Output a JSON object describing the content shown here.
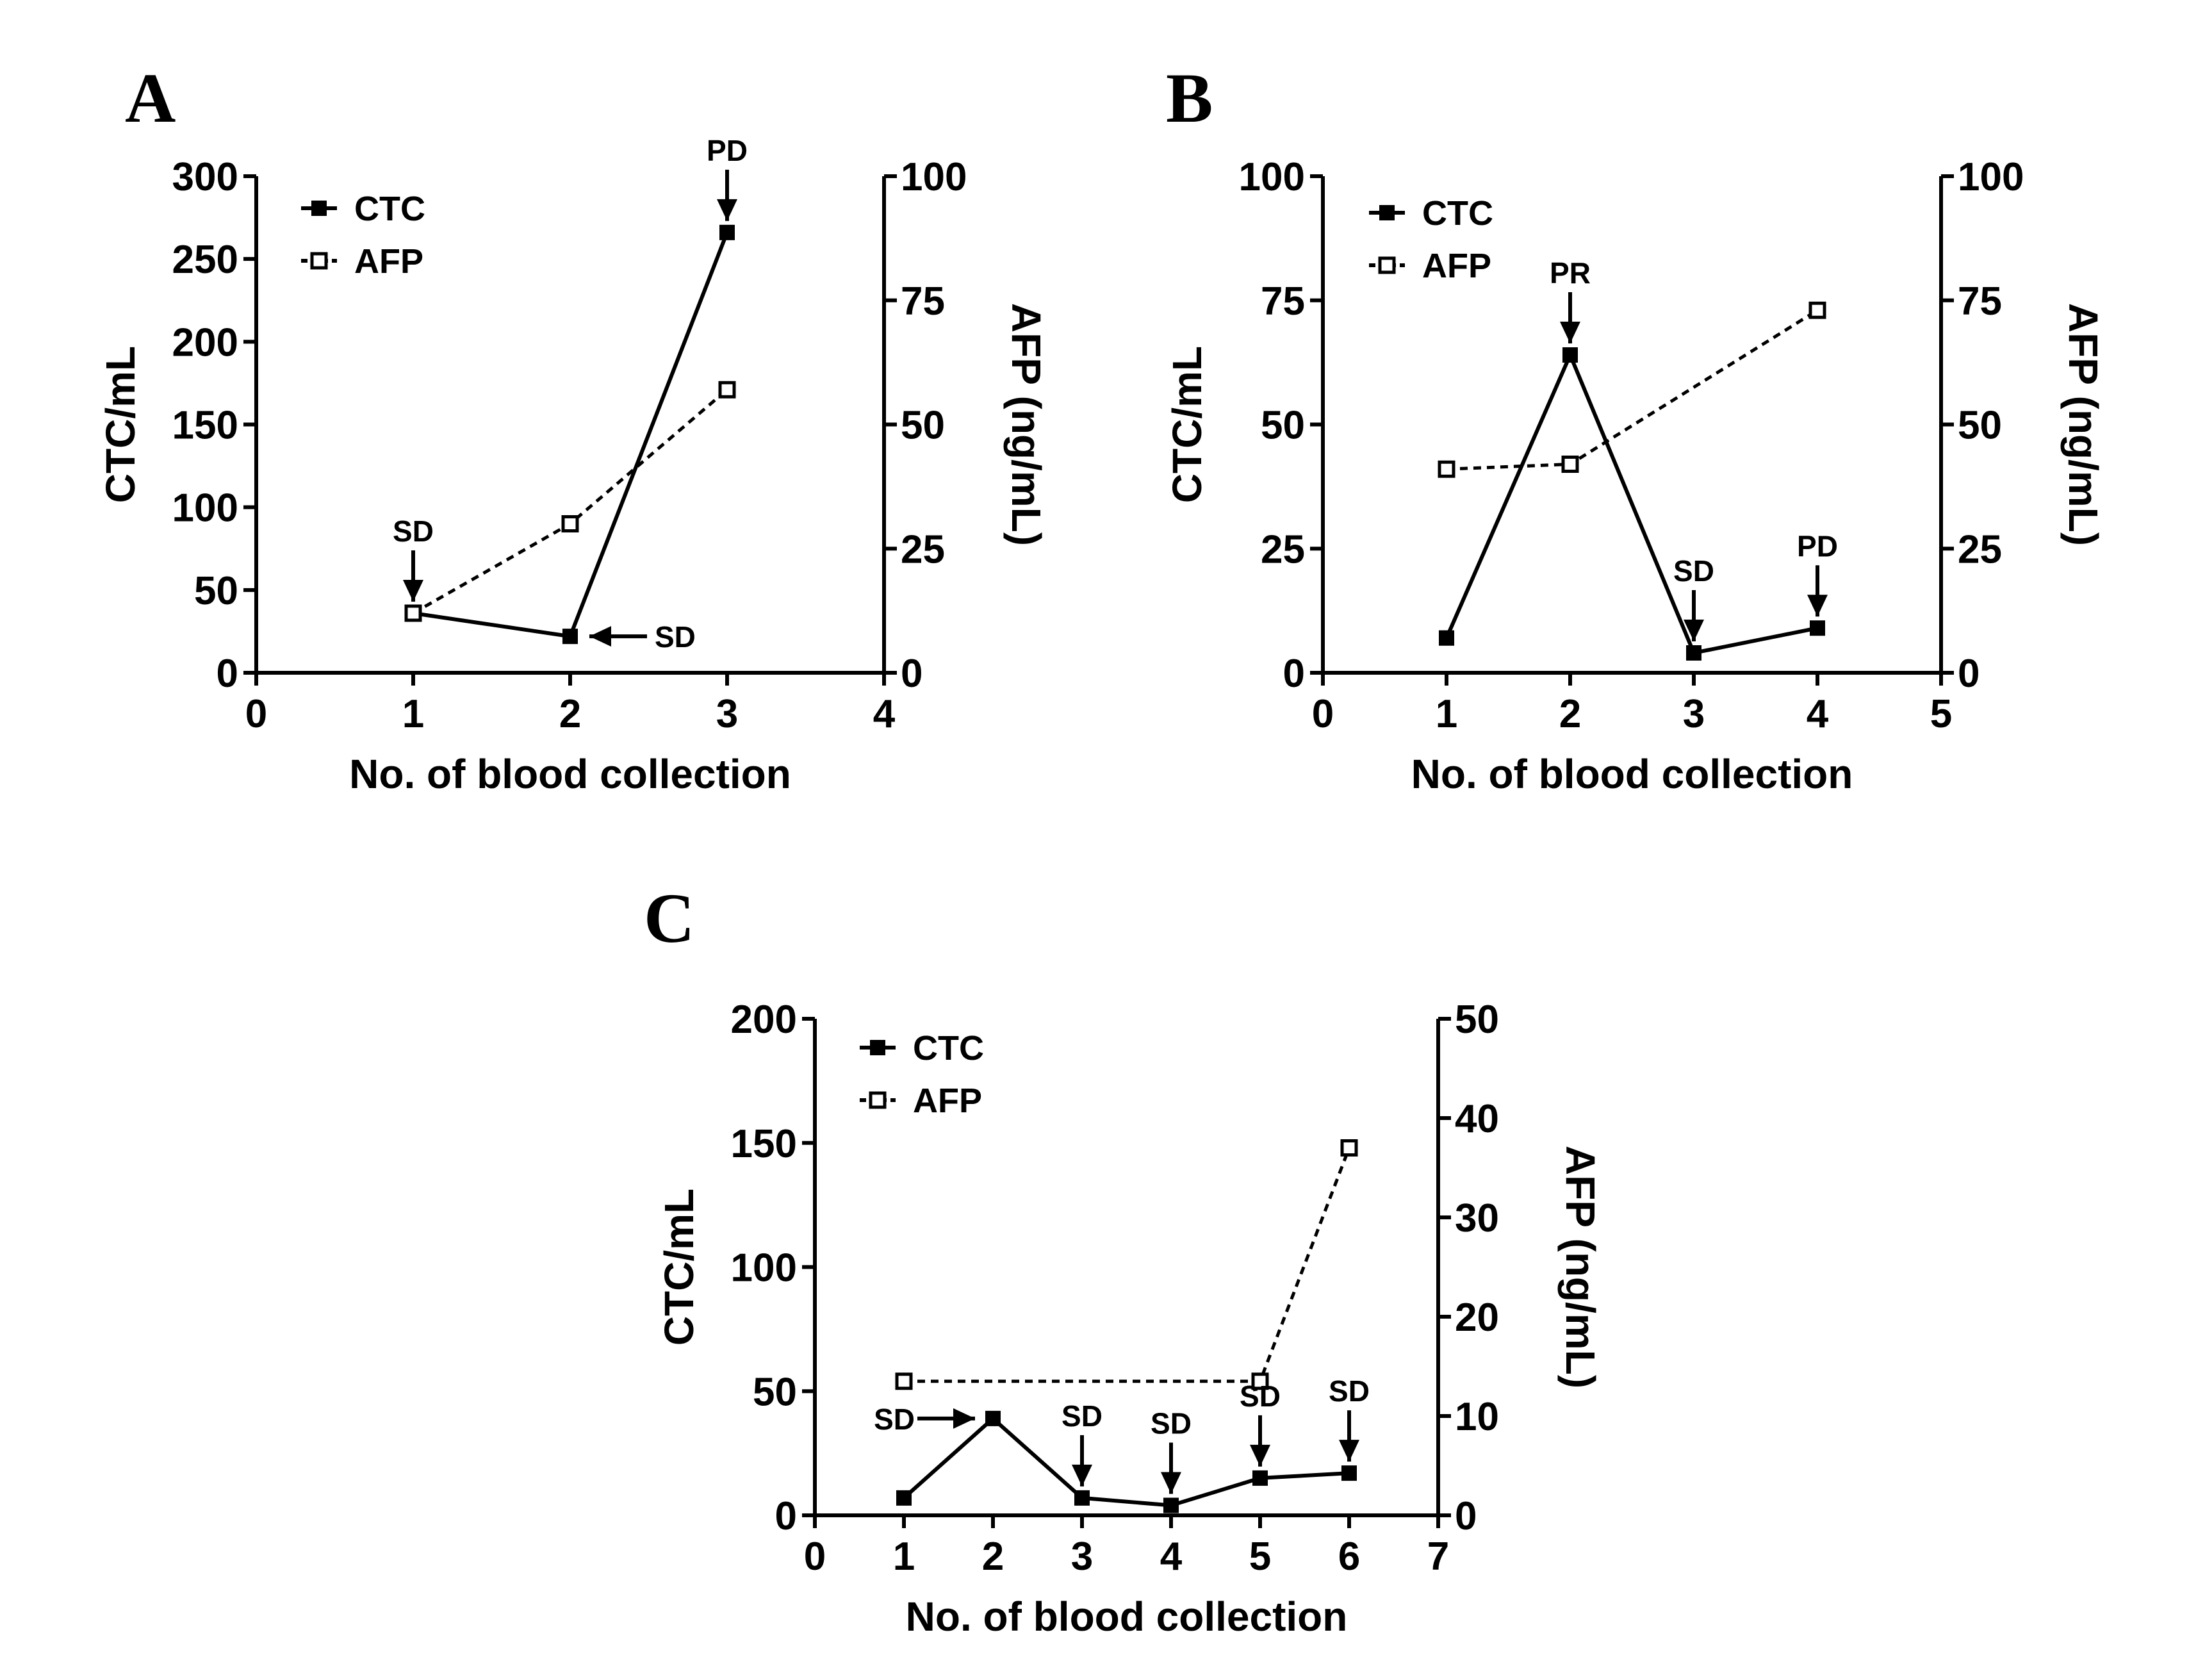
{
  "chart_data": [
    {
      "type": "line",
      "panel": "A",
      "xlabel": "No. of blood collection",
      "ylabel": "CTC/mL",
      "ylabel_right": "AFP (ng/mL)",
      "xlim": [
        0,
        4
      ],
      "ylim": [
        0,
        300
      ],
      "ylim_right": [
        0,
        100
      ],
      "xticks": [
        0,
        1,
        2,
        3,
        4
      ],
      "yticks": [
        0,
        50,
        100,
        150,
        200,
        250,
        300
      ],
      "yticks_right": [
        0,
        25,
        50,
        75,
        100
      ],
      "legend": [
        "CTC",
        "AFP"
      ],
      "legend_position": "top-left",
      "series": [
        {
          "name": "CTC",
          "axis": "left",
          "style": "solid",
          "marker": "filled-square",
          "x": [
            1,
            2,
            3
          ],
          "values": [
            36,
            22,
            266
          ]
        },
        {
          "name": "AFP",
          "axis": "right",
          "style": "dashed",
          "marker": "open-square",
          "x": [
            1,
            2,
            3
          ],
          "values": [
            12,
            30,
            57
          ]
        }
      ],
      "annotations": [
        {
          "text": "SD",
          "x": 1,
          "series": "CTC",
          "direction": "down"
        },
        {
          "text": "SD",
          "x": 2,
          "series": "CTC",
          "direction": "left"
        },
        {
          "text": "PD",
          "x": 3,
          "series": "CTC",
          "direction": "down"
        }
      ]
    },
    {
      "type": "line",
      "panel": "B",
      "xlabel": "No. of blood collection",
      "ylabel": "CTC/mL",
      "ylabel_right": "AFP (ng/mL)",
      "xlim": [
        0,
        5
      ],
      "ylim": [
        0,
        100
      ],
      "ylim_right": [
        0,
        100
      ],
      "xticks": [
        0,
        1,
        2,
        3,
        4,
        5
      ],
      "yticks": [
        0,
        25,
        50,
        75,
        100
      ],
      "yticks_right": [
        0,
        25,
        50,
        75,
        100
      ],
      "legend": [
        "CTC",
        "AFP"
      ],
      "legend_position": "top-left",
      "series": [
        {
          "name": "CTC",
          "axis": "left",
          "style": "solid",
          "marker": "filled-square",
          "x": [
            1,
            2,
            3,
            4
          ],
          "values": [
            7,
            64,
            4,
            9
          ]
        },
        {
          "name": "AFP",
          "axis": "right",
          "style": "dashed",
          "marker": "open-square",
          "x": [
            1,
            2,
            4
          ],
          "values": [
            41,
            42,
            73
          ]
        }
      ],
      "annotations": [
        {
          "text": "PR",
          "x": 2,
          "series": "CTC",
          "direction": "down"
        },
        {
          "text": "SD",
          "x": 3,
          "series": "CTC",
          "direction": "down"
        },
        {
          "text": "PD",
          "x": 4,
          "series": "CTC",
          "direction": "down"
        }
      ]
    },
    {
      "type": "line",
      "panel": "C",
      "xlabel": "No. of blood collection",
      "ylabel": "CTC/mL",
      "ylabel_right": "AFP (ng/mL)",
      "xlim": [
        0,
        7
      ],
      "ylim": [
        0,
        200
      ],
      "ylim_right": [
        0,
        50
      ],
      "xticks": [
        0,
        1,
        2,
        3,
        4,
        5,
        6,
        7
      ],
      "yticks": [
        0,
        50,
        100,
        150,
        200
      ],
      "yticks_right": [
        0,
        10,
        20,
        30,
        40,
        50
      ],
      "legend": [
        "CTC",
        "AFP"
      ],
      "legend_position": "top-left",
      "series": [
        {
          "name": "CTC",
          "axis": "left",
          "style": "solid",
          "marker": "filled-square",
          "x": [
            1,
            2,
            3,
            4,
            5,
            6
          ],
          "values": [
            7,
            39,
            7,
            4,
            15,
            17
          ]
        },
        {
          "name": "AFP",
          "axis": "right",
          "style": "dashed",
          "marker": "open-square",
          "x": [
            1,
            5,
            6
          ],
          "values": [
            13.5,
            13.5,
            37
          ]
        }
      ],
      "annotations": [
        {
          "text": "SD",
          "x": 2,
          "series": "CTC",
          "direction": "right"
        },
        {
          "text": "SD",
          "x": 3,
          "series": "CTC",
          "direction": "down"
        },
        {
          "text": "SD",
          "x": 4,
          "series": "CTC",
          "direction": "down"
        },
        {
          "text": "SD",
          "x": 5,
          "series": "CTC",
          "direction": "down"
        },
        {
          "text": "SD",
          "x": 6,
          "series": "CTC",
          "direction": "down"
        }
      ]
    }
  ]
}
